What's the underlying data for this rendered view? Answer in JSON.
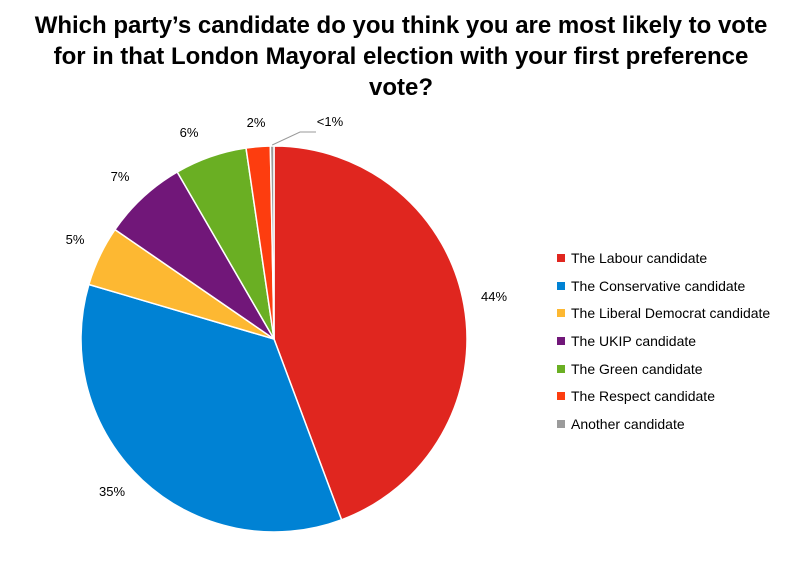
{
  "chart_data": {
    "type": "pie",
    "title": "Which party’s candidate do you think you are most likely to vote for in that London Mayoral election with your first preference vote?",
    "slices": [
      {
        "label": "The Labour candidate",
        "value": 44,
        "display": "44%",
        "color": "#e0261f"
      },
      {
        "label": "The Conservative candidate",
        "value": 35,
        "display": "35%",
        "color": "#0082d4"
      },
      {
        "label": "The Liberal Democrat candidate",
        "value": 5,
        "display": "5%",
        "color": "#fdb832"
      },
      {
        "label": "The UKIP candidate",
        "value": 7,
        "display": "7%",
        "color": "#711779"
      },
      {
        "label": "The Green candidate",
        "value": 6,
        "display": "6%",
        "color": "#6aaf23"
      },
      {
        "label": "The Respect candidate",
        "value": 2,
        "display": "2%",
        "color": "#fd3d0f"
      },
      {
        "label": "Another candidate",
        "value": 0.3,
        "display": "<1%",
        "color": "#9b9b9b"
      }
    ],
    "legend_position": "right"
  }
}
